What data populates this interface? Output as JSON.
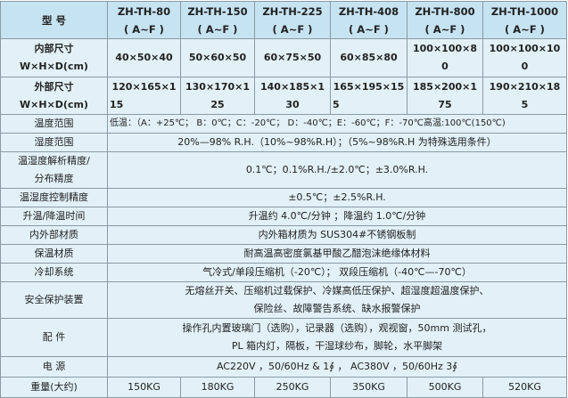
{
  "header": {
    "label": "型 号",
    "models": [
      {
        "name": "ZH-TH-80",
        "sub": "( A~F )"
      },
      {
        "name": "ZH-TH-150",
        "sub": "( A~F )"
      },
      {
        "name": "ZH-TH-225",
        "sub": "( A~F )"
      },
      {
        "name": "ZH-TH-408",
        "sub": "( A~F )"
      },
      {
        "name": "ZH-TH-800",
        "sub": "( A~F )"
      },
      {
        "name": "ZH-TH-1000",
        "sub": "( A~F )"
      }
    ]
  },
  "inner_size": {
    "label1": "内部尺寸",
    "label2": "W×H×D(cm)",
    "values": [
      [
        "40×50×40",
        ""
      ],
      [
        "50×60×50",
        ""
      ],
      [
        "60×75×50",
        ""
      ],
      [
        "60×85×80",
        ""
      ],
      [
        "100×100×8",
        "0"
      ],
      [
        "100×100×10",
        "0"
      ]
    ]
  },
  "outer_size": {
    "label1": "外部尺寸",
    "label2": "W×H×D(cm)",
    "values": [
      [
        "120×165×1",
        "15"
      ],
      [
        "130×170×1",
        "25"
      ],
      [
        "140×185×1",
        "30"
      ],
      [
        "165×195×15",
        "5"
      ],
      [
        "185×200×1",
        "75"
      ],
      [
        "190×210×18",
        "5"
      ]
    ]
  },
  "rows": {
    "temp_range": {
      "label": "温度范围",
      "value": "低温：（A：+25℃； B：0℃；C：-20℃； D：-40℃；E：-60℃；F：-70℃高温:100℃(150℃)"
    },
    "humidity_range": {
      "label": "湿度范围",
      "value": "20%—98% R.H.（10%~98%R.H）；（5%~98%R.H 为特殊选用条件）"
    },
    "resolution": {
      "label1": "温湿度解析精度/",
      "label2": "分布精度",
      "value": "0.1℃；0.1%R.H./±2.0℃；±3.0%R.H."
    },
    "control": {
      "label": "温湿度控制精度",
      "value": "±0.5℃；±2.5%R.H."
    },
    "ramp": {
      "label": "升温/降温时间",
      "value": "升温约 4.0℃/分钟 ；降温约 1.0℃/分钟"
    },
    "material": {
      "label": "内外部材质",
      "value": "内外箱材质为 SUS304#不锈钢板制"
    },
    "insulation": {
      "label": "保温材质",
      "value": "耐高温高密度氯基甲酸乙醋泡沫绝缘体材料"
    },
    "cooling": {
      "label": "冷却系统",
      "value": "气冷式/单段压缩机（-20℃）； 双段压缩机（-40℃—-70℃）"
    },
    "safety": {
      "label": "安全保护装置",
      "value1": "无熔丝开关、压缩机过载保护、冷媒高低压保护、超湿度超温度保护、",
      "value2": "保险丝、故障警告系统、缺水报警保护"
    },
    "accessories": {
      "label": "配 件",
      "value1": "操作孔内置玻璃门（选购），记录器（选购），观视窗，50mm 测试孔，",
      "value2": "PL 箱内灯，隔板，干湿球纱布，脚轮，水平脚架"
    },
    "power": {
      "label": "电 源",
      "value": "AC220V ，50/60Hz & 1∮ ， AC380V ，50/60Hz 3∮"
    }
  },
  "weight": {
    "label": "重量(大约)",
    "values": [
      "150KG",
      "180KG",
      "250KG",
      "350KG",
      "500KG",
      "520KG"
    ]
  }
}
